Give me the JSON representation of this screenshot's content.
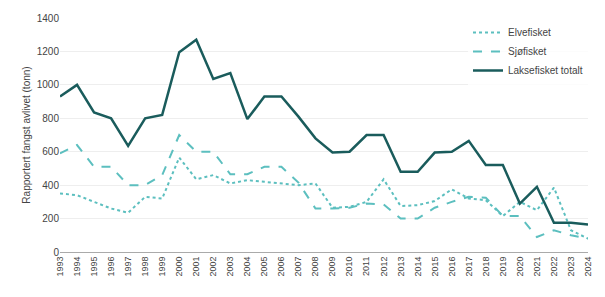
{
  "chart_data": {
    "type": "line",
    "ylabel": "Rapportert fangst avlivet (tonn)",
    "x": [
      1993,
      1994,
      1995,
      1996,
      1997,
      1998,
      1999,
      2000,
      2001,
      2002,
      2003,
      2004,
      2005,
      2006,
      2007,
      2008,
      2009,
      2010,
      2011,
      2012,
      2013,
      2014,
      2015,
      2016,
      2017,
      2018,
      2019,
      2020,
      2021,
      2022,
      2023,
      2024
    ],
    "xlim": [
      1993,
      2024
    ],
    "xticks": [
      1993,
      1994,
      1995,
      1996,
      1997,
      1998,
      1999,
      2000,
      2001,
      2002,
      2003,
      2004,
      2005,
      2006,
      2007,
      2008,
      2009,
      2010,
      2011,
      2012,
      2013,
      2014,
      2015,
      2016,
      2017,
      2018,
      2019,
      2020,
      2021,
      2022,
      2023,
      2024
    ],
    "ylim": [
      0,
      1400
    ],
    "yticks": [
      0,
      200,
      400,
      600,
      800,
      1000,
      1200,
      1400
    ],
    "grid": "y",
    "legend": "upper right",
    "series": [
      {
        "name": "Elvefisket",
        "color": "#5cbfbf",
        "line_style": "dotted",
        "values": [
          350,
          340,
          300,
          260,
          235,
          330,
          320,
          565,
          435,
          460,
          410,
          430,
          420,
          410,
          400,
          410,
          265,
          270,
          300,
          435,
          275,
          280,
          305,
          375,
          320,
          310,
          215,
          300,
          250,
          385,
          130,
          80
        ]
      },
      {
        "name": "Sjøfisket",
        "color": "#5cbfbf",
        "line_style": "dashed",
        "values": [
          590,
          640,
          510,
          510,
          400,
          400,
          460,
          700,
          600,
          600,
          465,
          465,
          510,
          510,
          415,
          260,
          260,
          265,
          290,
          285,
          200,
          200,
          265,
          300,
          330,
          325,
          215,
          215,
          90,
          130,
          100,
          80
        ]
      },
      {
        "name": "Laksefisket totalt",
        "color": "#1a5c5c",
        "line_style": "solid",
        "values": [
          930,
          1000,
          835,
          800,
          635,
          800,
          820,
          1195,
          1270,
          1035,
          1070,
          795,
          930,
          930,
          810,
          680,
          595,
          600,
          700,
          700,
          480,
          480,
          595,
          600,
          665,
          520,
          520,
          290,
          390,
          175,
          175,
          165
        ]
      }
    ]
  }
}
